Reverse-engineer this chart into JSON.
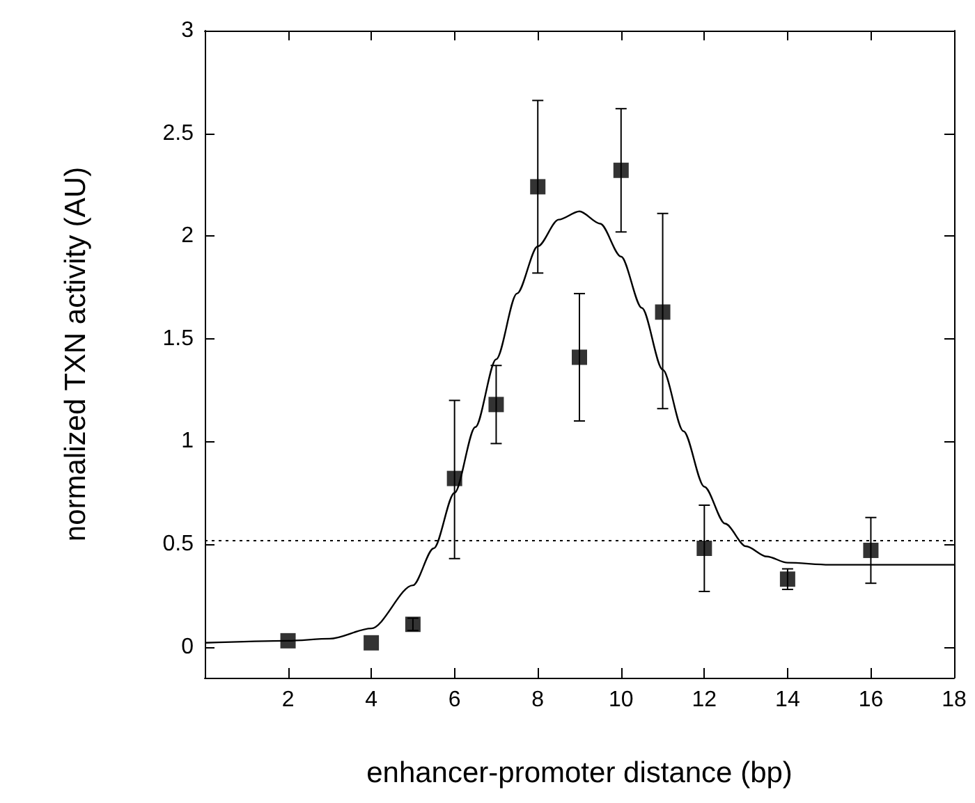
{
  "chart_data": {
    "type": "scatter",
    "xlabel": "enhancer-promoter distance (bp)",
    "ylabel": "normalized TXN activity (AU)",
    "xlim": [
      0,
      18
    ],
    "xticks": [
      {
        "value": 0,
        "label": null
      },
      2,
      4,
      6,
      8,
      10,
      12,
      14,
      16,
      18
    ],
    "ylim": [
      -0.15,
      3
    ],
    "yticks": [
      0,
      0.5,
      1,
      1.5,
      2,
      2.5,
      3
    ],
    "grid": false,
    "series": [
      {
        "type": "scatter",
        "color": "#000000",
        "marker": "square",
        "x": [
          2,
          4,
          5,
          6,
          7,
          8,
          9,
          10,
          11,
          12,
          14,
          16
        ],
        "values": [
          0.03,
          0.02,
          0.11,
          0.82,
          1.18,
          2.24,
          1.41,
          2.32,
          1.63,
          0.48,
          0.33,
          0.47
        ],
        "errors": [
          null,
          null,
          [
            0.08,
            0.14
          ],
          [
            0.43,
            1.2
          ],
          [
            0.99,
            1.37
          ],
          [
            1.82,
            2.66
          ],
          [
            1.1,
            1.72
          ],
          [
            2.02,
            2.62
          ],
          [
            1.16,
            2.11
          ],
          [
            0.27,
            0.69
          ],
          [
            0.28,
            0.38
          ],
          [
            0.31,
            0.63
          ]
        ]
      },
      {
        "type": "line",
        "color": "#000000",
        "marker": "none",
        "line_style": "solid",
        "x": [
          0,
          2,
          3,
          4,
          5,
          5.5,
          6,
          6.5,
          7,
          7.5,
          8,
          8.5,
          9,
          9.5,
          10,
          10.5,
          11,
          11.5,
          12,
          12.5,
          13,
          13.5,
          14,
          15,
          16,
          18
        ],
        "values": [
          0.02,
          0.03,
          0.04,
          0.09,
          0.3,
          0.48,
          0.75,
          1.07,
          1.4,
          1.72,
          1.95,
          2.08,
          2.12,
          2.06,
          1.9,
          1.65,
          1.35,
          1.05,
          0.78,
          0.6,
          0.49,
          0.44,
          0.41,
          0.4,
          0.4,
          0.4
        ]
      }
    ],
    "ref_lines": [
      {
        "axis": "y",
        "value": 0.52,
        "label": null,
        "color": "#000000",
        "line_style": "dotted"
      }
    ]
  }
}
